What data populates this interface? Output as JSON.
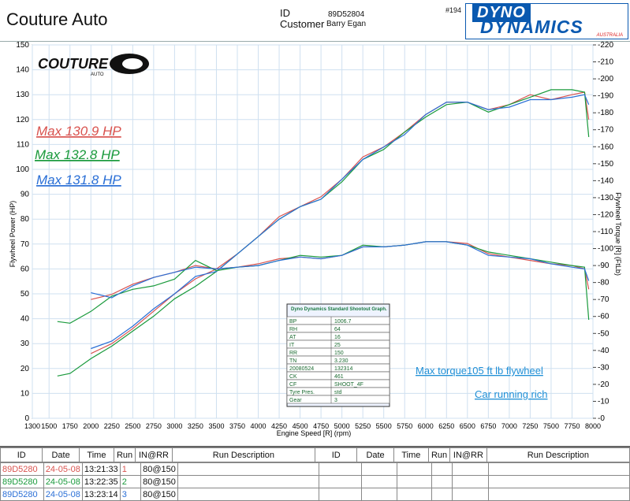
{
  "header": {
    "company": "Couture Auto",
    "id_label": "ID",
    "id_value": "89D52804",
    "customer_label": "Customer",
    "customer_value": "Barry Egan",
    "run_number": "#194",
    "dyno_line1": "DYNO",
    "dyno_line2": "DYNAMICS",
    "dyno_line3": "AUSTRALIA"
  },
  "logo": {
    "text": "COUTURE",
    "subtext": "AUTO"
  },
  "annotations": {
    "max1": "Max 130.9 HP",
    "max2": "Max 132.8 HP",
    "max3": "Max 131.8 HP",
    "torque_note": "Max torque105 ft lb flywheel",
    "rich_note": "Car running rich"
  },
  "colors": {
    "run1": "#d9534f",
    "run2": "#1a9a3c",
    "run3": "#2a6fd6",
    "grid": "#cfe0f0",
    "note": "#1f8fd6"
  },
  "info_box": {
    "title": "Dyno Dynamics Standard Shootout Graph.",
    "rows": [
      [
        "BP",
        "1006.7"
      ],
      [
        "RH",
        "64"
      ],
      [
        "AT",
        "16"
      ],
      [
        "IT",
        "25"
      ],
      [
        "RR",
        "150"
      ],
      [
        "TN",
        "3.230"
      ],
      [
        "20080524",
        "132314"
      ],
      [
        "CK",
        "461"
      ],
      [
        "CF",
        "SHOOT_4F"
      ],
      [
        "Tyre Pres.",
        "std"
      ],
      [
        "Gear",
        "3"
      ]
    ]
  },
  "table": {
    "headers": [
      "ID",
      "Date",
      "Time",
      "Run",
      "IN@RR",
      "Run Description",
      "ID",
      "Date",
      "Time",
      "Run",
      "IN@RR",
      "Run Description"
    ],
    "rows": [
      [
        "89D5280",
        "24-05-08",
        "13:21:33",
        "1",
        "80@150"
      ],
      [
        "89D5280",
        "24-05-08",
        "13:22:35",
        "2",
        "80@150"
      ],
      [
        "89D5280",
        "24-05-08",
        "13:23:14",
        "3",
        "80@150"
      ]
    ]
  },
  "chart_data": {
    "type": "line",
    "title": "",
    "xlabel": "Engine Speed [R] (rpm)",
    "ylabel": "Flywheel Power (HP)",
    "y2label": "Flywheel Torque [R] (FtLb)",
    "xlim": [
      1300,
      8000
    ],
    "ylim": [
      0,
      150
    ],
    "y2lim": [
      0,
      220
    ],
    "x_ticks": [
      "1300",
      "1500",
      "1750",
      "2000",
      "2250",
      "2500",
      "2750",
      "3000",
      "3250",
      "3500",
      "3750",
      "4000",
      "4250",
      "4500",
      "4750",
      "5000",
      "5250",
      "5500",
      "5750",
      "6000",
      "6250",
      "6500",
      "6750",
      "7000",
      "7250",
      "7500",
      "7750",
      "8000"
    ],
    "y_ticks": [
      "0",
      "10",
      "20",
      "30",
      "40",
      "50",
      "60",
      "70",
      "80",
      "90",
      "100",
      "110",
      "120",
      "130",
      "140",
      "150"
    ],
    "y2_ticks": [
      "0",
      "10",
      "20",
      "30",
      "40",
      "50",
      "60",
      "70",
      "80",
      "90",
      "100",
      "110",
      "120",
      "130",
      "140",
      "150",
      "160",
      "170",
      "180",
      "190",
      "200",
      "210",
      "220"
    ],
    "grid": true,
    "power_series": [
      {
        "name": "Run 1",
        "x": [
          2000,
          2250,
          2500,
          2750,
          3000,
          3250,
          3500,
          3750,
          4000,
          4250,
          4500,
          4750,
          5000,
          5250,
          5500,
          5750,
          6000,
          6250,
          6500,
          6750,
          7000,
          7250,
          7500,
          7750,
          7900,
          7950
        ],
        "y": [
          26,
          30,
          36,
          43,
          50,
          56,
          60,
          66,
          73,
          81,
          85,
          89,
          96,
          105,
          109,
          115,
          122,
          127,
          127,
          124,
          126,
          130,
          128,
          130,
          131,
          120
        ]
      },
      {
        "name": "Run 2",
        "x": [
          1600,
          1750,
          2000,
          2250,
          2500,
          2750,
          3000,
          3250,
          3500,
          3750,
          4000,
          4250,
          4500,
          4750,
          5000,
          5250,
          5500,
          5750,
          6000,
          6250,
          6500,
          6750,
          7000,
          7250,
          7500,
          7750,
          7900,
          7950
        ],
        "y": [
          17,
          18,
          24,
          29,
          35,
          41,
          48,
          53,
          59,
          66,
          73,
          80,
          85,
          88,
          95,
          104,
          108,
          115,
          121,
          126,
          127,
          123,
          126,
          129,
          132,
          132,
          131,
          113
        ]
      },
      {
        "name": "Run 3",
        "x": [
          2000,
          2250,
          2500,
          2750,
          3000,
          3250,
          3500,
          3750,
          4000,
          4250,
          4500,
          4750,
          5000,
          5250,
          5500,
          5750,
          6000,
          6250,
          6500,
          6750,
          7000,
          7250,
          7500,
          7750,
          7900,
          7950
        ],
        "y": [
          28,
          31,
          37,
          44,
          50,
          57,
          59,
          66,
          73,
          80,
          85,
          88,
          96,
          104,
          109,
          114,
          122,
          127,
          127,
          124,
          125,
          128,
          128,
          129,
          130,
          126
        ]
      }
    ],
    "torque_series": [
      {
        "name": "Run 1",
        "x": [
          2000,
          2250,
          2500,
          2750,
          3000,
          3250,
          3500,
          3750,
          4000,
          4250,
          4500,
          4750,
          5000,
          5250,
          5500,
          5750,
          6000,
          6250,
          6500,
          6750,
          7000,
          7250,
          7500,
          7750,
          7900,
          7950
        ],
        "y": [
          70,
          73,
          79,
          83,
          86,
          90,
          88,
          89,
          91,
          94,
          95,
          94,
          96,
          101,
          101,
          102,
          104,
          104,
          103,
          97,
          95,
          93,
          91,
          90,
          88,
          76
        ]
      },
      {
        "name": "Run 2",
        "x": [
          1600,
          1750,
          2000,
          2250,
          2500,
          2750,
          3000,
          3250,
          3500,
          3750,
          4000,
          4250,
          4500,
          4750,
          5000,
          5250,
          5500,
          5750,
          6000,
          6250,
          6500,
          6750,
          7000,
          7250,
          7500,
          7750,
          7900,
          7950
        ],
        "y": [
          57,
          56,
          63,
          72,
          76,
          78,
          82,
          93,
          87,
          89,
          90,
          93,
          96,
          95,
          96,
          102,
          101,
          102,
          104,
          104,
          102,
          98,
          96,
          94,
          92,
          90,
          89,
          58
        ]
      },
      {
        "name": "Run 3",
        "x": [
          2000,
          2250,
          2500,
          2750,
          3000,
          3250,
          3500,
          3750,
          4000,
          4250,
          4500,
          4750,
          5000,
          5250,
          5500,
          5750,
          6000,
          6250,
          6500,
          6750,
          7000,
          7250,
          7500,
          7750,
          7900,
          7950
        ],
        "y": [
          74,
          71,
          78,
          83,
          86,
          89,
          88,
          89,
          90,
          93,
          95,
          94,
          96,
          101,
          101,
          102,
          104,
          104,
          102,
          96,
          95,
          94,
          91,
          89,
          88,
          81
        ]
      }
    ]
  }
}
